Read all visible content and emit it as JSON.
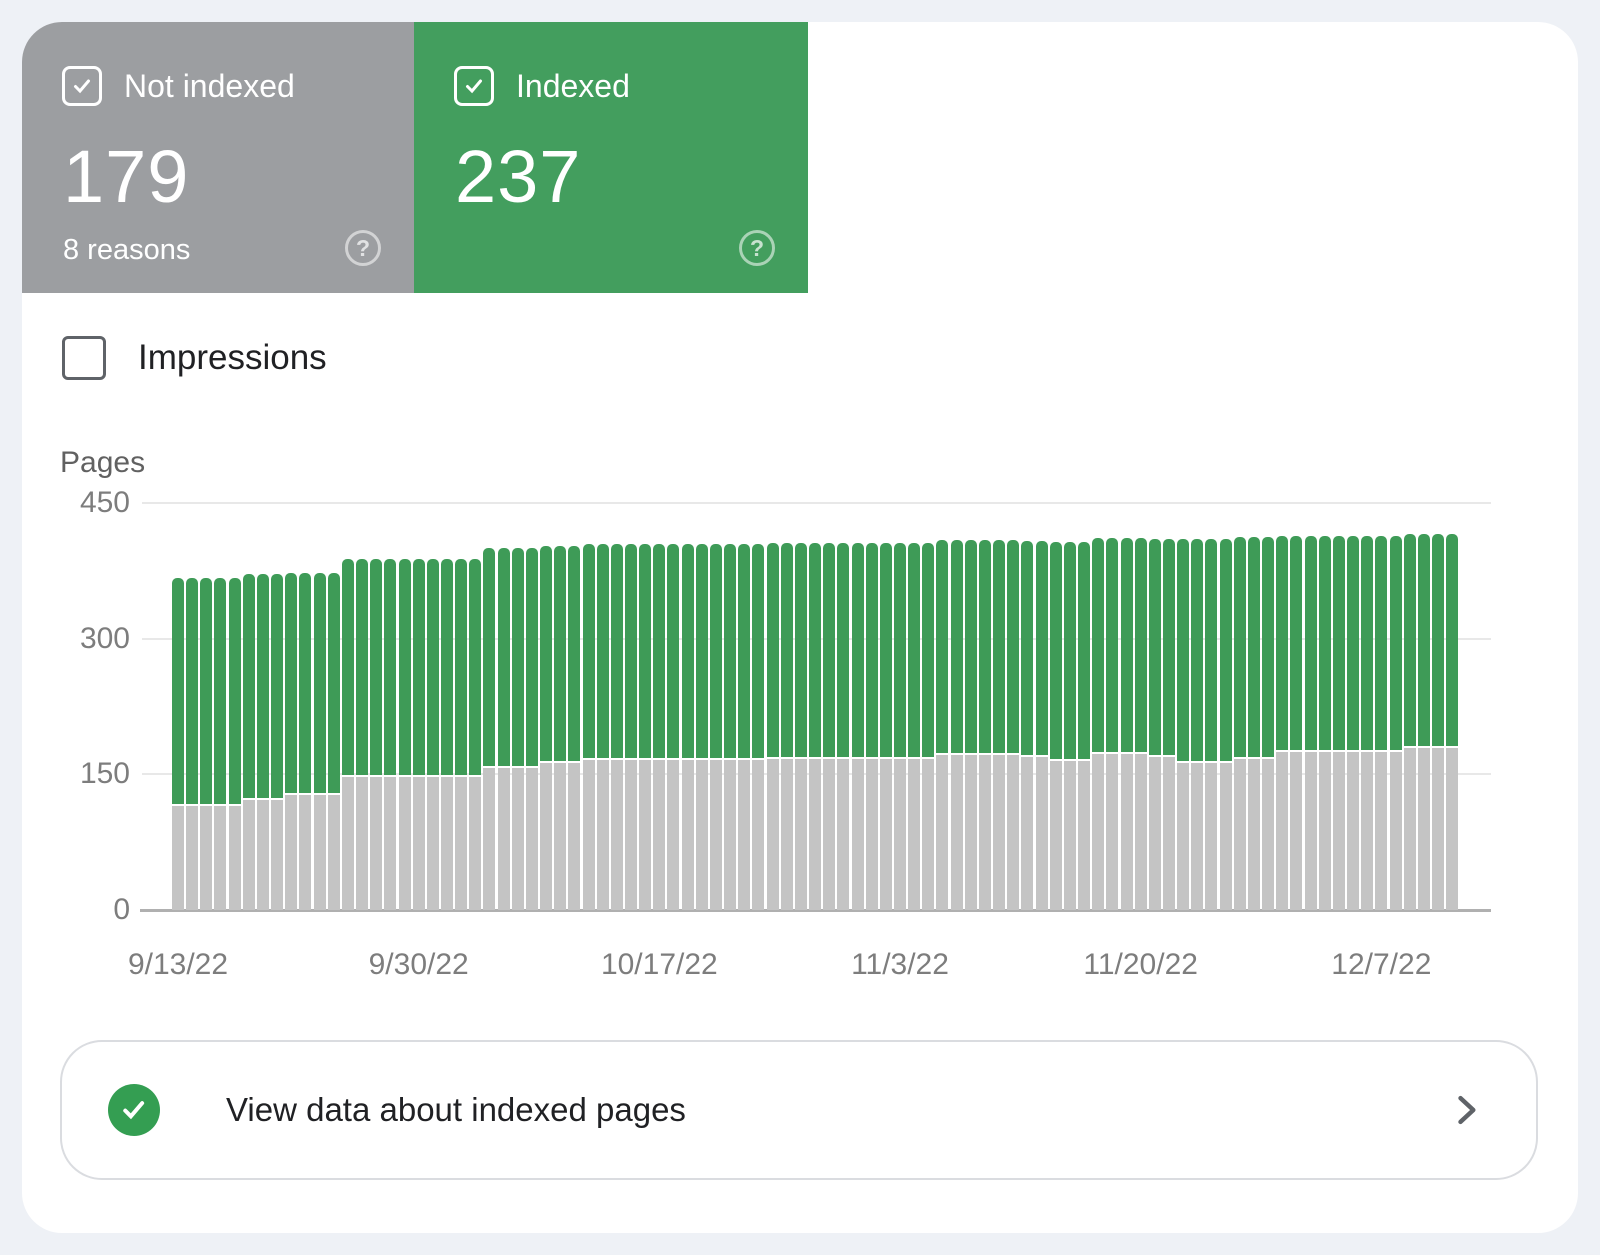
{
  "cards": {
    "not_indexed": {
      "label": "Not indexed",
      "value": "179",
      "sub": "8 reasons",
      "color": "#9c9ea1",
      "checked": true
    },
    "indexed": {
      "label": "Indexed",
      "value": "237",
      "color": "#439e5e",
      "checked": true
    },
    "help_glyph": "?"
  },
  "impressions": {
    "label": "Impressions",
    "checked": false
  },
  "footer": {
    "label": "View data about indexed pages"
  },
  "colors": {
    "page_background": "#eef1f6",
    "panel_background": "#ffffff",
    "bar_not_indexed": "#c4c4c4",
    "bar_indexed": "#3e9b57",
    "gridline": "#e8e8e8",
    "axis_line": "#b0b0b0",
    "tick_text": "#7d7d7d",
    "footer_check_green": "#349e52"
  },
  "chart_data": {
    "type": "bar",
    "stacked": true,
    "title": "",
    "xlabel": "",
    "ylabel": "Pages",
    "ylim": [
      0,
      450
    ],
    "y_ticks": [
      0,
      150,
      300,
      450
    ],
    "grid": true,
    "legend_position": "none",
    "x_tick_labels": [
      "9/13/22",
      "9/30/22",
      "10/17/22",
      "11/3/22",
      "11/20/22",
      "12/7/22"
    ],
    "x_tick_indices": [
      0,
      17,
      34,
      51,
      68,
      85
    ],
    "x": [
      "9/13/22",
      "9/14/22",
      "9/15/22",
      "9/16/22",
      "9/17/22",
      "9/18/22",
      "9/19/22",
      "9/20/22",
      "9/21/22",
      "9/22/22",
      "9/23/22",
      "9/24/22",
      "9/25/22",
      "9/26/22",
      "9/27/22",
      "9/28/22",
      "9/29/22",
      "9/30/22",
      "10/1/22",
      "10/2/22",
      "10/3/22",
      "10/4/22",
      "10/5/22",
      "10/6/22",
      "10/7/22",
      "10/8/22",
      "10/9/22",
      "10/10/22",
      "10/11/22",
      "10/12/22",
      "10/13/22",
      "10/14/22",
      "10/15/22",
      "10/16/22",
      "10/17/22",
      "10/18/22",
      "10/19/22",
      "10/20/22",
      "10/21/22",
      "10/22/22",
      "10/23/22",
      "10/24/22",
      "10/25/22",
      "10/26/22",
      "10/27/22",
      "10/28/22",
      "10/29/22",
      "10/30/22",
      "10/31/22",
      "11/1/22",
      "11/2/22",
      "11/3/22",
      "11/4/22",
      "11/5/22",
      "11/6/22",
      "11/7/22",
      "11/8/22",
      "11/9/22",
      "11/10/22",
      "11/11/22",
      "11/12/22",
      "11/13/22",
      "11/14/22",
      "11/15/22",
      "11/16/22",
      "11/17/22",
      "11/18/22",
      "11/19/22",
      "11/20/22",
      "11/21/22",
      "11/22/22",
      "11/23/22",
      "11/24/22",
      "11/25/22",
      "11/26/22",
      "11/27/22",
      "11/28/22",
      "11/29/22",
      "11/30/22",
      "12/1/22",
      "12/2/22",
      "12/3/22",
      "12/4/22",
      "12/5/22",
      "12/6/22",
      "12/7/22",
      "12/8/22",
      "12/9/22",
      "12/10/22",
      "12/11/22",
      "12/12/22"
    ],
    "series": [
      {
        "name": "Not indexed",
        "color": "#c4c4c4",
        "values": [
          115,
          115,
          115,
          115,
          115,
          122,
          122,
          122,
          127,
          127,
          127,
          127,
          147,
          147,
          147,
          147,
          147,
          147,
          147,
          147,
          147,
          147,
          157,
          157,
          157,
          157,
          162,
          162,
          162,
          166,
          166,
          166,
          166,
          166,
          166,
          166,
          166,
          166,
          166,
          166,
          166,
          166,
          167,
          167,
          167,
          167,
          167,
          167,
          167,
          167,
          167,
          167,
          167,
          167,
          171,
          171,
          171,
          171,
          171,
          171,
          169,
          169,
          165,
          165,
          165,
          173,
          173,
          173,
          173,
          169,
          169,
          163,
          163,
          163,
          163,
          167,
          167,
          167,
          175,
          175,
          175,
          175,
          175,
          175,
          175,
          175,
          175,
          179,
          179,
          179,
          179
        ]
      },
      {
        "name": "Indexed",
        "color": "#3e9b57",
        "values": [
          252,
          252,
          252,
          252,
          252,
          250,
          250,
          250,
          246,
          246,
          246,
          246,
          241,
          241,
          241,
          241,
          241,
          241,
          241,
          241,
          241,
          241,
          243,
          243,
          243,
          243,
          241,
          241,
          241,
          239,
          239,
          239,
          239,
          239,
          239,
          239,
          239,
          239,
          239,
          239,
          239,
          239,
          239,
          239,
          239,
          239,
          239,
          239,
          239,
          239,
          239,
          239,
          239,
          239,
          238,
          238,
          238,
          238,
          238,
          238,
          239,
          239,
          242,
          242,
          242,
          238,
          238,
          238,
          238,
          241,
          241,
          247,
          247,
          247,
          247,
          245,
          245,
          245,
          239,
          239,
          239,
          239,
          239,
          239,
          239,
          239,
          239,
          237,
          237,
          237,
          237
        ]
      }
    ]
  }
}
